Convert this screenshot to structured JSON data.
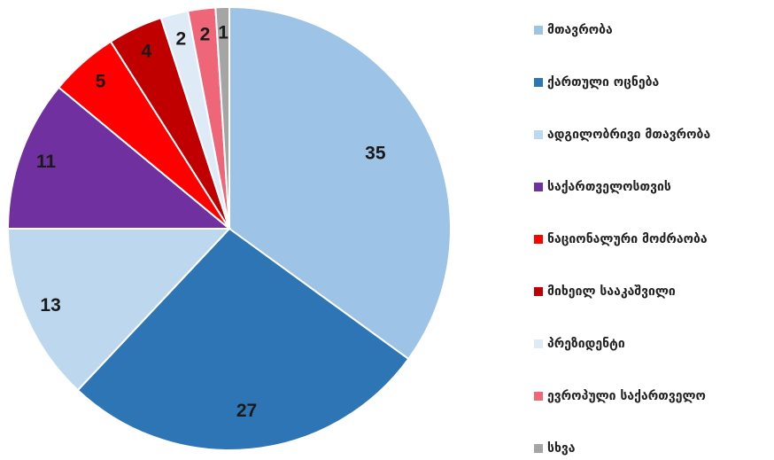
{
  "chart_data": {
    "type": "pie",
    "categories": [
      "მთავრობა",
      "ქართული ოცნება",
      "ადგილობრივი მთავრობა",
      "საქართველოსთვის",
      "ნაციონალური მოძრაობა",
      "მიხეილ სააკაშვილი",
      "პრეზიდენტი",
      "ევროპული საქართველო",
      "სხვა"
    ],
    "values": [
      35,
      27,
      13,
      11,
      5,
      4,
      2,
      2,
      1
    ],
    "colors": [
      "#9dc3e6",
      "#2e75b6",
      "#bdd7ee",
      "#7030a0",
      "#ff0000",
      "#c00000",
      "#deebf7",
      "#ee6677",
      "#a5a5a5"
    ],
    "legend": "right"
  }
}
